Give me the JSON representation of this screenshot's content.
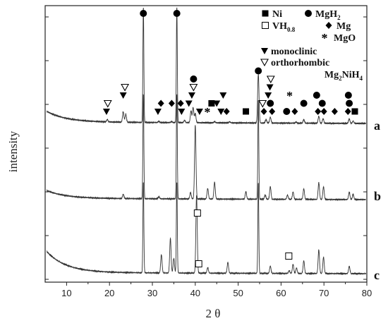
{
  "chart_data": {
    "type": "line",
    "title": "",
    "xlabel": "2 θ",
    "ylabel": "intensity",
    "xlim": [
      5,
      80
    ],
    "x_ticks": [
      10,
      20,
      30,
      40,
      50,
      60,
      70,
      80
    ],
    "y_ticks_shown": false,
    "grid": false,
    "legend_placement": "top-right",
    "legend": [
      {
        "symbol": "filled-square",
        "label": "Ni"
      },
      {
        "symbol": "open-square",
        "label": "VH",
        "sub": "0.8"
      },
      {
        "symbol": "filled-circle",
        "label": "MgH",
        "sub": "2"
      },
      {
        "symbol": "filled-diamond",
        "label": "Mg"
      },
      {
        "symbol": "asterisk",
        "label": "MgO"
      },
      {
        "symbol": "filled-triangle-down",
        "label": "monoclinic"
      },
      {
        "symbol": "open-triangle-down",
        "label": "orthorhombic"
      },
      {
        "symbol": "none",
        "label": "Mg",
        "sub": "2",
        "label2": "NiH",
        "sub2": "4"
      }
    ],
    "series": [
      {
        "name": "a",
        "baseline": 0.16,
        "start_rise": 0.1,
        "peaks": [
          [
            19.5,
            0.02
          ],
          [
            23.2,
            0.09
          ],
          [
            23.8,
            0.07
          ],
          [
            27.9,
            1.0
          ],
          [
            31.5,
            0.01
          ],
          [
            34.5,
            0.01
          ],
          [
            35.7,
            1.0
          ],
          [
            37.5,
            0.02
          ],
          [
            39.0,
            0.1
          ],
          [
            39.5,
            0.13
          ],
          [
            40.0,
            0.08
          ],
          [
            44.5,
            0.01
          ],
          [
            48.0,
            0.01
          ],
          [
            54.7,
            0.42
          ],
          [
            56.5,
            0.03
          ],
          [
            57.5,
            0.05
          ],
          [
            63.5,
            0.01
          ],
          [
            65.3,
            0.03
          ],
          [
            68.8,
            0.06
          ],
          [
            69.8,
            0.04
          ],
          [
            75.9,
            0.04
          ],
          [
            76.8,
            0.02
          ]
        ]
      },
      {
        "name": "b",
        "baseline": 0.16,
        "start_rise": 0.08,
        "peaks": [
          [
            23.2,
            0.04
          ],
          [
            27.9,
            1.0
          ],
          [
            31.5,
            0.02
          ],
          [
            35.7,
            1.0
          ],
          [
            38.9,
            0.06
          ],
          [
            40.0,
            0.7
          ],
          [
            42.9,
            0.1
          ],
          [
            44.5,
            0.16
          ],
          [
            51.8,
            0.07
          ],
          [
            54.7,
            0.95
          ],
          [
            56.3,
            0.04
          ],
          [
            57.5,
            0.12
          ],
          [
            61.5,
            0.04
          ],
          [
            62.8,
            0.07
          ],
          [
            65.3,
            0.1
          ],
          [
            68.8,
            0.16
          ],
          [
            69.9,
            0.12
          ],
          [
            75.9,
            0.07
          ],
          [
            76.8,
            0.05
          ]
        ]
      },
      {
        "name": "c",
        "baseline": 0.16,
        "start_rise": 0.25,
        "peaks": [
          [
            27.9,
            1.0
          ],
          [
            32.1,
            0.2
          ],
          [
            34.2,
            0.38
          ],
          [
            35.0,
            0.16
          ],
          [
            35.7,
            1.0
          ],
          [
            40.3,
            0.85
          ],
          [
            42.9,
            0.06
          ],
          [
            47.6,
            0.12
          ],
          [
            54.7,
            1.0
          ],
          [
            57.5,
            0.08
          ],
          [
            61.9,
            0.03
          ],
          [
            62.8,
            0.1
          ],
          [
            63.6,
            0.06
          ],
          [
            65.3,
            0.14
          ],
          [
            68.8,
            0.26
          ],
          [
            69.9,
            0.18
          ],
          [
            75.9,
            0.08
          ]
        ]
      }
    ],
    "markers": [
      {
        "symbol": "filled-circle",
        "x": 27.9,
        "trace": "a",
        "pos": "top"
      },
      {
        "symbol": "filled-circle",
        "x": 35.7,
        "trace": "a",
        "pos": "top"
      },
      {
        "symbol": "filled-triangle-down",
        "x": 19.3,
        "trace": "a",
        "level": 0
      },
      {
        "symbol": "open-triangle-down",
        "x": 19.6,
        "trace": "a",
        "level": 1
      },
      {
        "symbol": "open-triangle-down",
        "x": 23.6,
        "trace": "a",
        "level": 3
      },
      {
        "symbol": "filled-triangle-down",
        "x": 23.2,
        "trace": "a",
        "level": 2
      },
      {
        "symbol": "filled-triangle-down",
        "x": 31.3,
        "trace": "a",
        "level": 0
      },
      {
        "symbol": "filled-diamond",
        "x": 32.0,
        "trace": "a",
        "level": 1
      },
      {
        "symbol": "filled-diamond",
        "x": 34.5,
        "trace": "a",
        "level": 1
      },
      {
        "symbol": "filled-triangle-down",
        "x": 36.8,
        "trace": "a",
        "level": 0
      },
      {
        "symbol": "filled-diamond",
        "x": 36.6,
        "trace": "a",
        "level": 1
      },
      {
        "symbol": "filled-triangle-down",
        "x": 38.5,
        "trace": "a",
        "level": 1
      },
      {
        "symbol": "filled-triangle-down",
        "x": 39.2,
        "trace": "a",
        "level": 2
      },
      {
        "symbol": "open-triangle-down",
        "x": 39.6,
        "trace": "a",
        "level": 3
      },
      {
        "symbol": "filled-circle",
        "x": 39.6,
        "trace": "a",
        "level": 4
      },
      {
        "symbol": "filled-triangle-down",
        "x": 41.0,
        "trace": "a",
        "level": 0
      },
      {
        "symbol": "asterisk",
        "x": 42.8,
        "trace": "a",
        "level": 0
      },
      {
        "symbol": "filled-square",
        "x": 43.8,
        "trace": "a",
        "level": 1
      },
      {
        "symbol": "filled-triangle-down",
        "x": 45.0,
        "trace": "a",
        "level": 1
      },
      {
        "symbol": "filled-triangle-down",
        "x": 46.5,
        "trace": "a",
        "level": 2
      },
      {
        "symbol": "filled-triangle-down",
        "x": 46.0,
        "trace": "a",
        "level": 0
      },
      {
        "symbol": "filled-diamond",
        "x": 47.3,
        "trace": "a",
        "level": 0
      },
      {
        "symbol": "filled-square",
        "x": 51.8,
        "trace": "a",
        "level": 0
      },
      {
        "symbol": "filled-circle",
        "x": 54.7,
        "trace": "a",
        "level": 5
      },
      {
        "symbol": "open-triangle-down",
        "x": 55.7,
        "trace": "a",
        "level": 1
      },
      {
        "symbol": "filled-diamond",
        "x": 56.0,
        "trace": "a",
        "level": 0
      },
      {
        "symbol": "filled-triangle-down",
        "x": 57.0,
        "trace": "a",
        "level": 2
      },
      {
        "symbol": "open-triangle-down",
        "x": 57.6,
        "trace": "a",
        "level": 4
      },
      {
        "symbol": "filled-triangle-down",
        "x": 57.4,
        "trace": "a",
        "level": 3
      },
      {
        "symbol": "filled-circle",
        "x": 57.5,
        "trace": "a",
        "level": 1
      },
      {
        "symbol": "filled-diamond",
        "x": 57.9,
        "trace": "a",
        "level": 0
      },
      {
        "symbol": "filled-circle",
        "x": 61.3,
        "trace": "a",
        "level": 0
      },
      {
        "symbol": "asterisk",
        "x": 62.0,
        "trace": "a",
        "level": 2
      },
      {
        "symbol": "filled-diamond",
        "x": 63.2,
        "trace": "a",
        "level": 0
      },
      {
        "symbol": "filled-circle",
        "x": 65.3,
        "trace": "a",
        "level": 1
      },
      {
        "symbol": "filled-circle",
        "x": 68.3,
        "trace": "a",
        "level": 2
      },
      {
        "symbol": "filled-diamond",
        "x": 68.6,
        "trace": "a",
        "level": 0
      },
      {
        "symbol": "filled-circle",
        "x": 69.6,
        "trace": "a",
        "level": 1
      },
      {
        "symbol": "filled-diamond",
        "x": 70.0,
        "trace": "a",
        "level": 0
      },
      {
        "symbol": "filled-diamond",
        "x": 72.5,
        "trace": "a",
        "level": 0
      },
      {
        "symbol": "filled-circle",
        "x": 75.7,
        "trace": "a",
        "level": 2
      },
      {
        "symbol": "filled-circle",
        "x": 75.9,
        "trace": "a",
        "level": 1
      },
      {
        "symbol": "filled-diamond",
        "x": 75.6,
        "trace": "a",
        "level": 0
      },
      {
        "symbol": "filled-square",
        "x": 77.2,
        "trace": "a",
        "level": 0
      },
      {
        "symbol": "open-square",
        "x": 40.5,
        "trace": "c",
        "level": 6
      },
      {
        "symbol": "open-square",
        "x": 40.8,
        "trace": "c",
        "level": 0
      },
      {
        "symbol": "open-square",
        "x": 61.8,
        "trace": "c",
        "level": 1
      }
    ]
  }
}
